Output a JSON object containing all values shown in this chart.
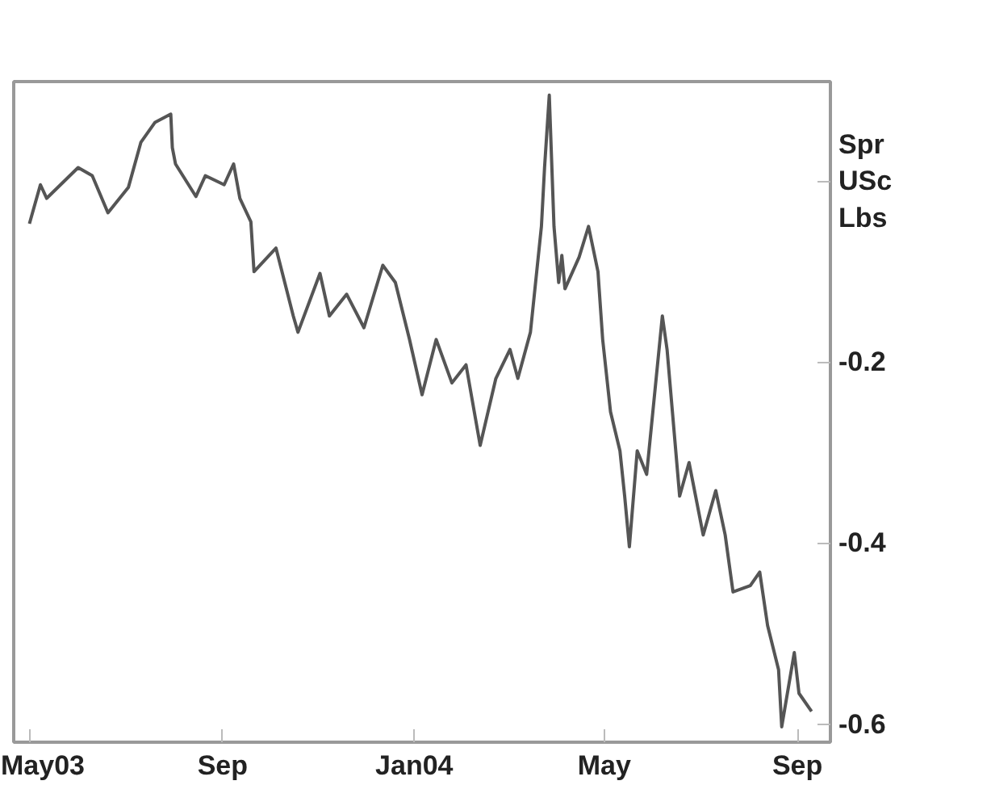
{
  "chart_data": {
    "type": "line",
    "ylabel": "Spr USc Lbs",
    "x": [
      "2003-05-01",
      "2003-05-08",
      "2003-05-12",
      "2003-06-01",
      "2003-06-10",
      "2003-06-20",
      "2003-07-03",
      "2003-07-11",
      "2003-07-20",
      "2003-07-30",
      "2003-07-31",
      "2003-08-02",
      "2003-08-15",
      "2003-08-21",
      "2003-09-02",
      "2003-09-08",
      "2003-09-12",
      "2003-09-19",
      "2003-09-21",
      "2003-10-05",
      "2003-10-16",
      "2003-10-19",
      "2003-11-02",
      "2003-11-08",
      "2003-11-19",
      "2003-11-30",
      "2003-12-12",
      "2003-12-20",
      "2003-12-29",
      "2004-01-06",
      "2004-01-15",
      "2004-01-25",
      "2004-02-03",
      "2004-02-12",
      "2004-02-22",
      "2004-03-02",
      "2004-03-07",
      "2004-03-15",
      "2004-03-22",
      "2004-03-24",
      "2004-03-27",
      "2004-03-30",
      "2004-04-02",
      "2004-04-04",
      "2004-04-06",
      "2004-04-15",
      "2004-04-21",
      "2004-04-27",
      "2004-04-30",
      "2004-05-05",
      "2004-05-11",
      "2004-05-14",
      "2004-05-17",
      "2004-05-22",
      "2004-05-28",
      "2004-06-07",
      "2004-06-10",
      "2004-06-18",
      "2004-06-24",
      "2004-07-03",
      "2004-07-11",
      "2004-07-17",
      "2004-07-22",
      "2004-08-02",
      "2004-08-08",
      "2004-08-13",
      "2004-08-20",
      "2004-08-22",
      "2004-08-30",
      "2004-09-02",
      "2004-09-10"
    ],
    "series": [
      {
        "color": "#555555",
        "values": [
          -0.047,
          -0.004,
          -0.019,
          0.015,
          0.006,
          -0.035,
          -0.007,
          0.043,
          0.065,
          0.074,
          0.037,
          0.019,
          -0.017,
          0.006,
          -0.004,
          0.019,
          -0.019,
          -0.045,
          -0.1,
          -0.074,
          -0.149,
          -0.167,
          -0.102,
          -0.149,
          -0.125,
          -0.162,
          -0.093,
          -0.112,
          -0.175,
          -0.236,
          -0.175,
          -0.223,
          -0.203,
          -0.292,
          -0.218,
          -0.186,
          -0.218,
          -0.167,
          -0.05,
          0.015,
          0.095,
          -0.05,
          -0.112,
          -0.082,
          -0.119,
          -0.084,
          -0.05,
          -0.1,
          -0.175,
          -0.255,
          -0.298,
          -0.348,
          -0.404,
          -0.298,
          -0.324,
          -0.149,
          -0.186,
          -0.348,
          -0.311,
          -0.391,
          -0.342,
          -0.391,
          -0.454,
          -0.447,
          -0.432,
          -0.491,
          -0.54,
          -0.603,
          -0.521,
          -0.566,
          -0.586
        ]
      }
    ],
    "xlim": [
      "2003-04-21",
      "2004-09-22"
    ],
    "xticks": [
      {
        "value": "2003-05-01",
        "label": "May03"
      },
      {
        "value": "2003-09-01",
        "label": "Sep"
      },
      {
        "value": "2004-01-01",
        "label": "Jan04"
      },
      {
        "value": "2004-05-01",
        "label": "May"
      },
      {
        "value": "2004-09-01",
        "label": "Sep"
      }
    ],
    "ylim": [
      -0.62,
      0.11
    ],
    "yticks": [
      {
        "value": 0,
        "label": null
      },
      -0.2,
      -0.4,
      -0.6
    ],
    "grid": false,
    "line_style": "solid",
    "marker": "none"
  }
}
